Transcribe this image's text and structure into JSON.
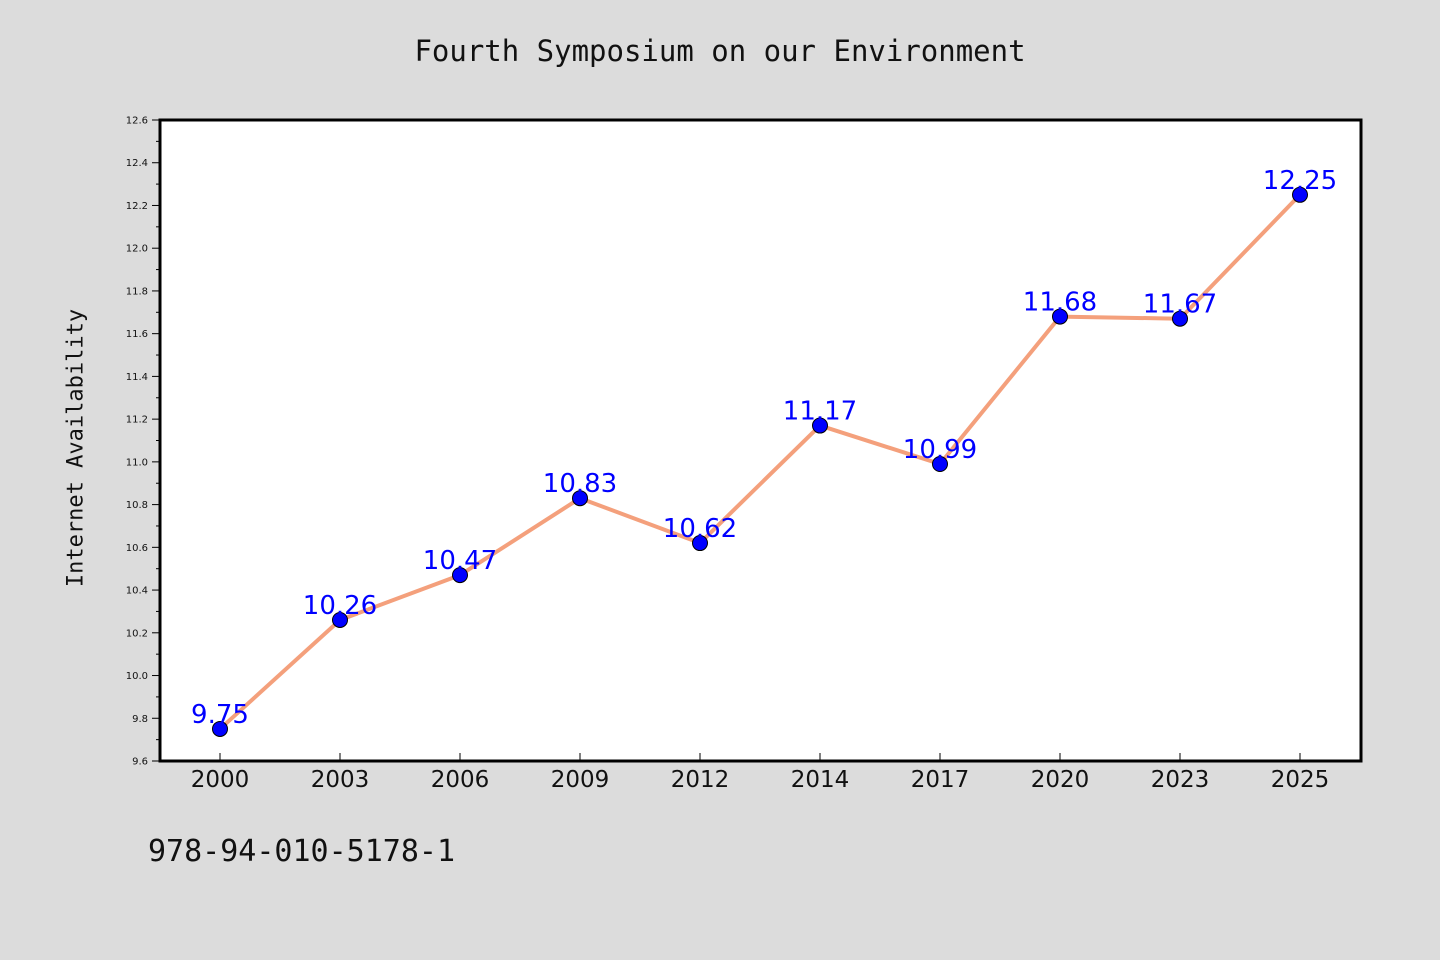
{
  "chart_data": {
    "type": "line",
    "title": "Fourth Symposium on our Environment",
    "xlabel": "",
    "ylabel": "Internet Availability",
    "categories": [
      "2000",
      "2003",
      "2006",
      "2009",
      "2012",
      "2014",
      "2017",
      "2020",
      "2023",
      "2025"
    ],
    "series": [
      {
        "values": [
          9.75,
          10.26,
          10.47,
          10.83,
          10.62,
          11.17,
          10.99,
          11.68,
          11.67,
          12.25
        ],
        "labels": [
          "9.75",
          "10.26",
          "10.47",
          "10.83",
          "10.62",
          "11.17",
          "10.99",
          "11.68",
          "11.67",
          "12.25"
        ]
      }
    ],
    "ylim": [
      9.6,
      12.6
    ],
    "yticks": [
      "9.6",
      "9.8",
      "10.0",
      "10.2",
      "10.4",
      "10.6",
      "10.8",
      "11.0",
      "11.2",
      "11.4",
      "11.6",
      "11.8",
      "12.0",
      "12.2",
      "12.4",
      "12.6"
    ],
    "grid": false,
    "line_color": "#f4a07c",
    "marker_color": "#0000ff",
    "label_color": "#0000ff"
  },
  "footnote": "978-94-010-5178-1"
}
